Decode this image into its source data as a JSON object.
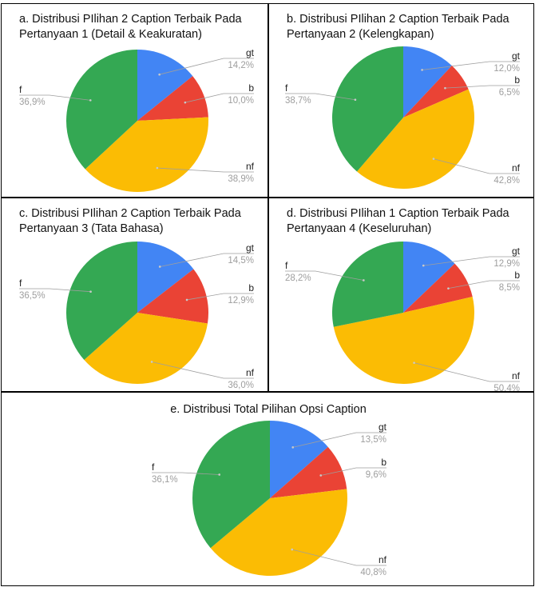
{
  "colors": {
    "gt": "#4285f4",
    "b": "#ea4335",
    "nf": "#fbbc04",
    "f": "#34a853",
    "leader": "#9e9e9e"
  },
  "chart_data": [
    {
      "type": "pie",
      "title_lines": [
        "a. Distribusi PIlihan 2 Caption Terbaik Pada",
        "Pertanyaan 1 (Detail & Keakuratan)"
      ],
      "slices": [
        {
          "label": "gt",
          "value": 14.2,
          "display": "14,2%"
        },
        {
          "label": "b",
          "value": 10.0,
          "display": "10,0%"
        },
        {
          "label": "nf",
          "value": 38.9,
          "display": "38,9%"
        },
        {
          "label": "f",
          "value": 36.9,
          "display": "36,9%"
        }
      ]
    },
    {
      "type": "pie",
      "title_lines": [
        "b. Distribusi PIlihan 2 Caption Terbaik Pada",
        "Pertanyaan 2 (Kelengkapan)"
      ],
      "slices": [
        {
          "label": "gt",
          "value": 12.0,
          "display": "12,0%"
        },
        {
          "label": "b",
          "value": 6.5,
          "display": "6,5%"
        },
        {
          "label": "nf",
          "value": 42.8,
          "display": "42,8%"
        },
        {
          "label": "f",
          "value": 38.7,
          "display": "38,7%"
        }
      ]
    },
    {
      "type": "pie",
      "title_lines": [
        "c. Distribusi PIlihan 2 Caption Terbaik Pada",
        "Pertanyaan 3 (Tata Bahasa)"
      ],
      "slices": [
        {
          "label": "gt",
          "value": 14.5,
          "display": "14,5%"
        },
        {
          "label": "b",
          "value": 12.9,
          "display": "12,9%"
        },
        {
          "label": "nf",
          "value": 36.0,
          "display": "36,0%"
        },
        {
          "label": "f",
          "value": 36.5,
          "display": "36,5%"
        }
      ]
    },
    {
      "type": "pie",
      "title_lines": [
        "d. Distribusi PIlihan 1 Caption Terbaik Pada",
        "Pertanyaan 4 (Keseluruhan)"
      ],
      "slices": [
        {
          "label": "gt",
          "value": 12.9,
          "display": "12,9%"
        },
        {
          "label": "b",
          "value": 8.5,
          "display": "8,5%"
        },
        {
          "label": "nf",
          "value": 50.4,
          "display": "50,4%"
        },
        {
          "label": "f",
          "value": 28.2,
          "display": "28,2%"
        }
      ]
    },
    {
      "type": "pie",
      "title_lines": [
        "e. Distribusi Total Pilihan Opsi Caption"
      ],
      "slices": [
        {
          "label": "gt",
          "value": 13.5,
          "display": "13,5%"
        },
        {
          "label": "b",
          "value": 9.6,
          "display": "9,6%"
        },
        {
          "label": "nf",
          "value": 40.8,
          "display": "40,8%"
        },
        {
          "label": "f",
          "value": 36.1,
          "display": "36,1%"
        }
      ]
    }
  ]
}
